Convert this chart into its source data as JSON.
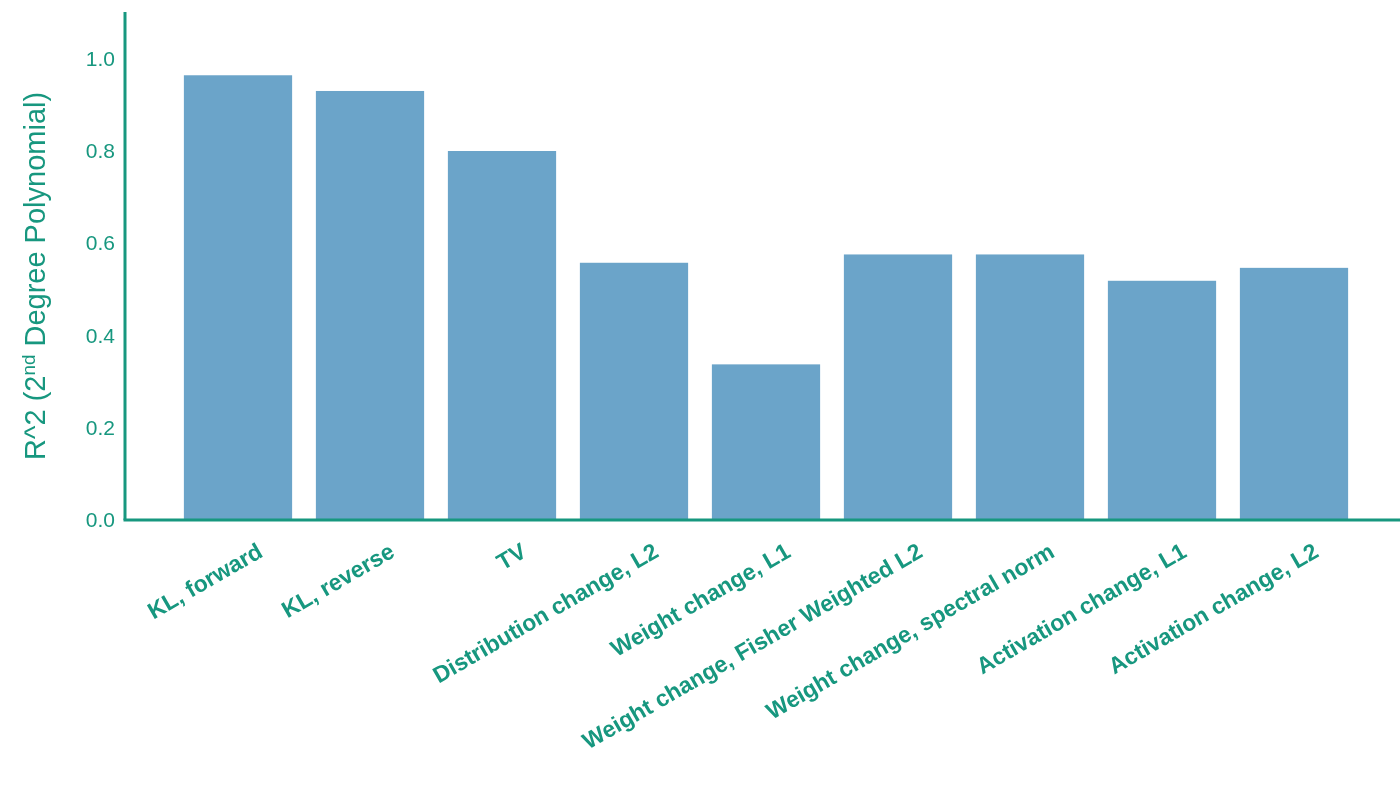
{
  "chart_data": {
    "type": "bar",
    "ylabel": "R^2 (2$^{nd}$ Degree Polynomial)",
    "categories": [
      "KL, forward",
      "KL, reverse",
      "TV",
      "Distribution change, L2",
      "Weight change, L1",
      "Weight change, Fisher Weighted L2",
      "Weight change, spectral norm",
      "Activation change, L1",
      "Activation change, L2"
    ],
    "values": [
      0.963,
      0.929,
      0.799,
      0.557,
      0.337,
      0.575,
      0.575,
      0.518,
      0.546
    ],
    "color": "#6ba4c9",
    "ylim": [
      0,
      1.1
    ],
    "yticks": [
      {
        "value": 0,
        "label": "0.0"
      },
      {
        "value": 0.2,
        "label": "0.2"
      },
      {
        "value": 0.4,
        "label": "0.4"
      },
      {
        "value": 0.6,
        "label": "0.6"
      },
      {
        "value": 0.8,
        "label": "0.8"
      },
      {
        "value": 1,
        "label": "1.0"
      }
    ],
    "grid": false
  }
}
